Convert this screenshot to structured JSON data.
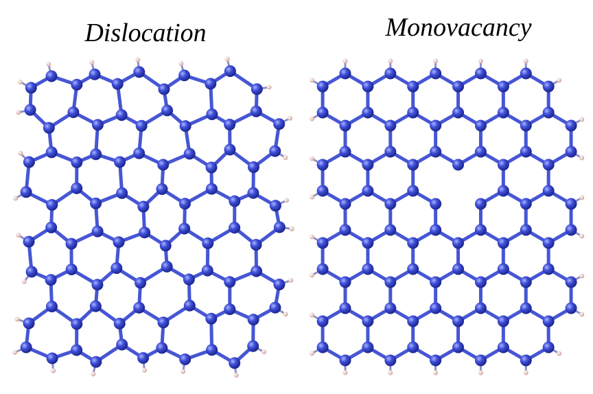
{
  "panels": [
    {
      "title": "Dislocation"
    },
    {
      "title": "Monovacancy"
    }
  ]
}
